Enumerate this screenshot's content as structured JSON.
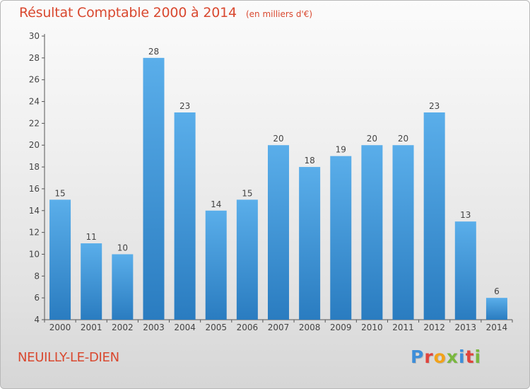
{
  "header": {
    "title": "Résultat Comptable 2000 à 2014",
    "subtitle": "(en milliers d'€)"
  },
  "footer": {
    "city": "NEUILLY-LE-DIEN",
    "brand": "Proxiti"
  },
  "colors": {
    "title": "#d9482f",
    "bar_light": "#5aaeea",
    "bar_dark": "#2a7cc0",
    "axis": "#555555",
    "logo_letters": [
      "#3d8ed9",
      "#e0433c",
      "#f2a21a",
      "#7ab83e",
      "#3d8ed9",
      "#e0433c",
      "#7ab83e"
    ]
  },
  "chart_data": {
    "type": "bar",
    "title": "Résultat Comptable 2000 à 2014",
    "categories": [
      "2000",
      "2001",
      "2002",
      "2003",
      "2004",
      "2005",
      "2006",
      "2007",
      "2008",
      "2009",
      "2010",
      "2011",
      "2012",
      "2013",
      "2014"
    ],
    "values": [
      15,
      11,
      10,
      28,
      23,
      14,
      15,
      20,
      18,
      19,
      20,
      20,
      23,
      13,
      6
    ],
    "yticks": [
      4,
      6,
      8,
      10,
      12,
      14,
      16,
      18,
      20,
      22,
      24,
      26,
      28,
      30
    ],
    "ylim": [
      4,
      30
    ],
    "xlabel": "",
    "ylabel": "",
    "grid": false,
    "data_labels": true
  }
}
